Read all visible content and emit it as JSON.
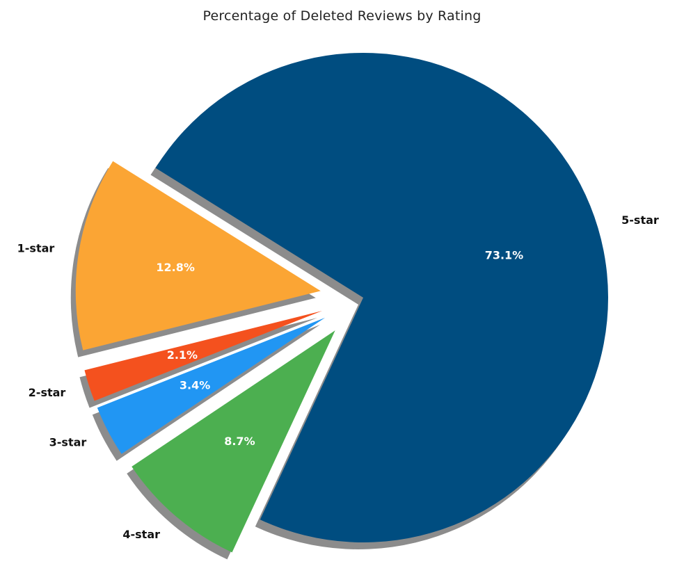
{
  "chart_data": {
    "type": "pie",
    "title": "Percentage of Deleted Reviews by Rating",
    "slices": [
      {
        "label": "1-star",
        "value": 12.8,
        "pct_label": "12.8%",
        "color": "#FBA534",
        "exploded": true
      },
      {
        "label": "2-star",
        "value": 2.1,
        "pct_label": "2.1%",
        "color": "#F4511E",
        "exploded": true
      },
      {
        "label": "3-star",
        "value": 3.4,
        "pct_label": "3.4%",
        "color": "#2196F3",
        "exploded": true
      },
      {
        "label": "4-star",
        "value": 8.7,
        "pct_label": "8.7%",
        "color": "#4CAF50",
        "exploded": true
      },
      {
        "label": "5-star",
        "value": 73.1,
        "pct_label": "73.1%",
        "color": "#004D80",
        "exploded": false
      }
    ],
    "shadow": true,
    "legend": "none"
  }
}
